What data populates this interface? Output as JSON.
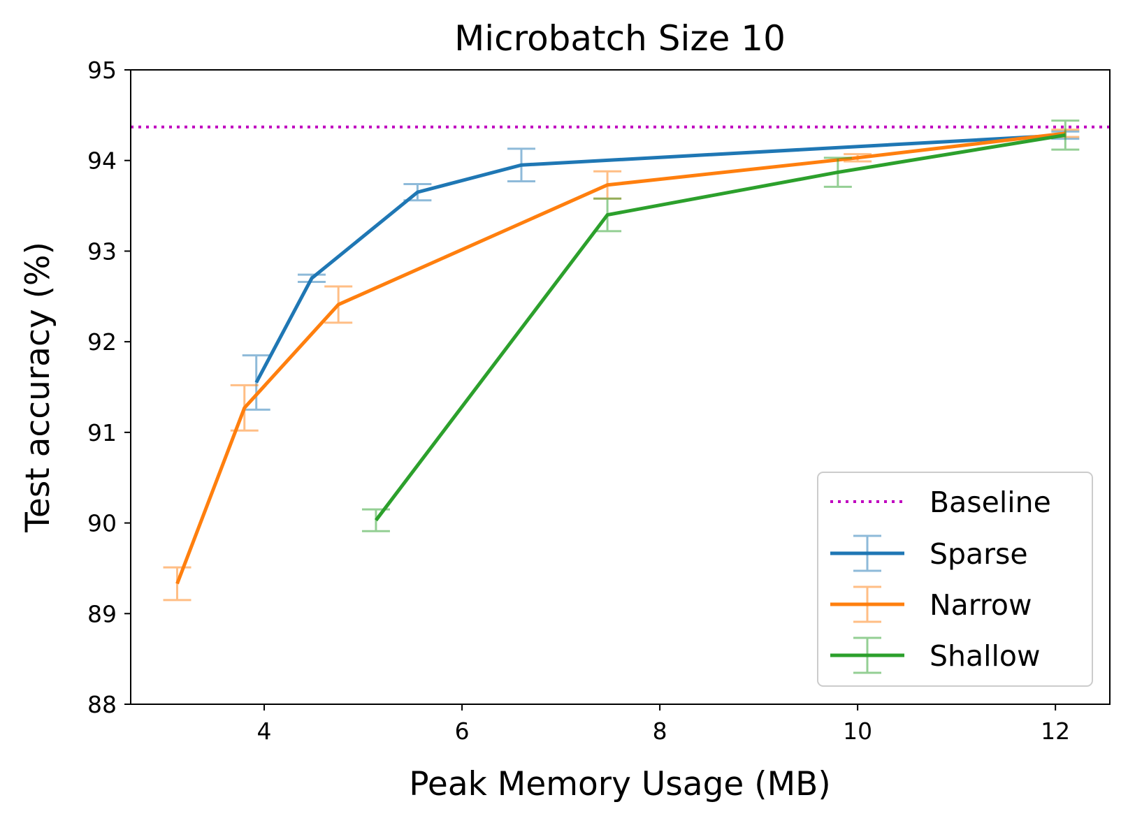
{
  "chart_data": {
    "type": "line",
    "title": "Microbatch Size 10",
    "xlabel": "Peak Memory Usage (MB)",
    "ylabel": "Test accuracy (%)",
    "xlim": [
      2.65,
      12.55
    ],
    "ylim": [
      88,
      95
    ],
    "xticks": [
      4,
      6,
      8,
      10,
      12
    ],
    "xtick_labels": [
      "4",
      "6",
      "8",
      "10",
      "12"
    ],
    "yticks": [
      88,
      89,
      90,
      91,
      92,
      93,
      94,
      95
    ],
    "ytick_labels": [
      "88",
      "89",
      "90",
      "91",
      "92",
      "93",
      "94",
      "95"
    ],
    "grid": false,
    "legend_position": "lower right",
    "baseline": {
      "name": "Baseline",
      "value": 94.37,
      "color": "#bf00bf",
      "style": "dotted"
    },
    "series": [
      {
        "name": "Sparse",
        "color": "#1f77b4",
        "x": [
          3.92,
          4.48,
          5.55,
          6.6,
          12.1
        ],
        "y": [
          91.55,
          92.7,
          93.65,
          93.95,
          94.28
        ],
        "err": [
          0.3,
          0.04,
          0.09,
          0.18,
          0.04
        ]
      },
      {
        "name": "Narrow",
        "color": "#ff7f0e",
        "x": [
          3.12,
          3.8,
          4.75,
          7.47,
          10.0,
          12.1
        ],
        "y": [
          89.33,
          91.27,
          92.41,
          93.73,
          94.03,
          94.3
        ],
        "err": [
          0.18,
          0.25,
          0.2,
          0.15,
          0.04,
          0.04
        ]
      },
      {
        "name": "Shallow",
        "color": "#2ca02c",
        "x": [
          5.13,
          7.47,
          9.8,
          12.1
        ],
        "y": [
          90.03,
          93.4,
          93.87,
          94.28
        ],
        "err": [
          0.12,
          0.18,
          0.16,
          0.16
        ]
      }
    ]
  }
}
